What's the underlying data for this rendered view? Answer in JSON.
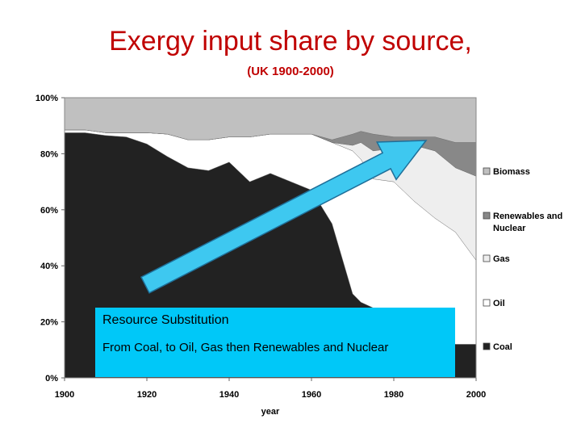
{
  "title": "Exergy input share by source,",
  "subtitle": "(UK 1900-2000)",
  "annotation": {
    "heading": "Resource Substitution",
    "body": "From Coal, to Oil, Gas then Renewables and Nuclear"
  },
  "colors": {
    "coal": "#222222",
    "oil": "#ffffff",
    "gas": "#eeeeee",
    "renewables": "#888888",
    "biomass": "#c0c0c0",
    "arrow": "#3ec8f0",
    "title": "#c00000"
  },
  "chart_data": {
    "type": "area",
    "stacked": true,
    "title": "Exergy input share by source,",
    "subtitle": "(UK 1900-2000)",
    "xlabel": "year",
    "ylabel": "",
    "xlim": [
      1900,
      2000
    ],
    "ylim": [
      0,
      100
    ],
    "x_ticks": [
      "1900",
      "1920",
      "1940",
      "1960",
      "1980",
      "2000"
    ],
    "y_ticks": [
      "0%",
      "20%",
      "40%",
      "60%",
      "80%",
      "100%"
    ],
    "legend_position": "right",
    "legend": [
      "Biomass",
      "Renewables and Nuclear",
      "Gas",
      "Oil",
      "Coal"
    ],
    "x": [
      1900,
      1905,
      1910,
      1915,
      1920,
      1925,
      1930,
      1935,
      1940,
      1945,
      1950,
      1955,
      1960,
      1965,
      1970,
      1972,
      1975,
      1980,
      1985,
      1990,
      1995,
      2000
    ],
    "series": [
      {
        "name": "Coal",
        "values": [
          87.5,
          87.5,
          86.5,
          86,
          83.5,
          79,
          75,
          74,
          77,
          70,
          73,
          70,
          67,
          55,
          30,
          27,
          25,
          20,
          19,
          15,
          12,
          12
        ]
      },
      {
        "name": "Oil",
        "values": [
          1,
          1,
          1,
          1.5,
          4,
          8,
          10,
          11,
          9,
          16,
          14,
          17,
          20,
          29,
          51,
          51,
          46,
          50,
          44,
          42,
          40,
          30
        ]
      },
      {
        "name": "Gas",
        "values": [
          0,
          0,
          0,
          0,
          0,
          0,
          0,
          0,
          0,
          0,
          0,
          0,
          0,
          0,
          2,
          6,
          10,
          12,
          20,
          24,
          23,
          30
        ]
      },
      {
        "name": "Renewables and Nuclear",
        "values": [
          0,
          0,
          0,
          0,
          0,
          0,
          0,
          0,
          0,
          0,
          0,
          0,
          0,
          1,
          4,
          4,
          6,
          4,
          3,
          5,
          9,
          12
        ]
      },
      {
        "name": "Biomass",
        "values": [
          11.5,
          11.5,
          12.5,
          12.5,
          12.5,
          13,
          15,
          15,
          14,
          14,
          13,
          13,
          13,
          15,
          13,
          12,
          13,
          14,
          14,
          14,
          16,
          16
        ]
      }
    ]
  }
}
